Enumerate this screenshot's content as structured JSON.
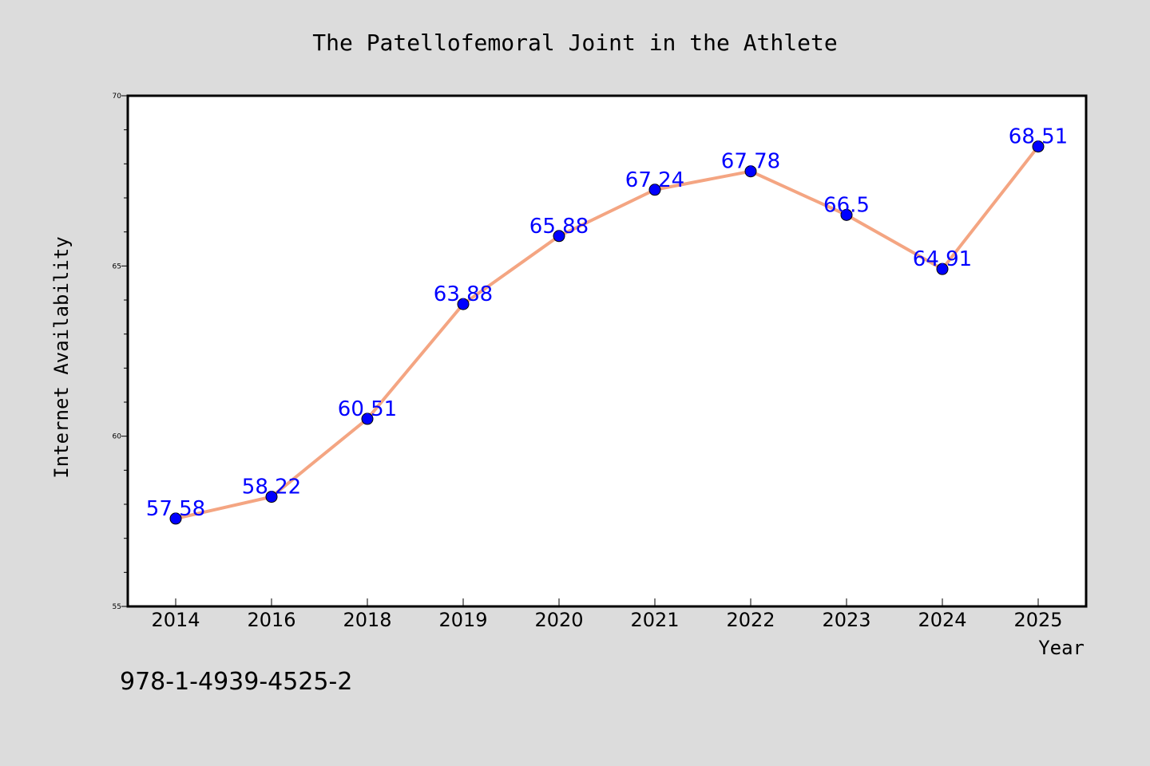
{
  "footer_text": "978-1-4939-4525-2",
  "chart_data": {
    "type": "line",
    "title": "The Patellofemoral Joint in the Athlete",
    "xlabel": "Year",
    "ylabel": "Internet Availability",
    "categories": [
      "2014",
      "2016",
      "2018",
      "2019",
      "2020",
      "2021",
      "2022",
      "2023",
      "2024",
      "2025"
    ],
    "values": [
      57.58,
      58.22,
      60.51,
      63.88,
      65.88,
      67.24,
      67.78,
      66.5,
      64.91,
      68.51
    ],
    "data_labels": [
      "57.58",
      "58.22",
      "60.51",
      "63.88",
      "65.88",
      "67.24",
      "67.78",
      "66.5",
      "64.91",
      "68.51"
    ],
    "ylim": [
      55,
      70
    ],
    "yticks": [
      "55",
      "60",
      "65",
      "70"
    ],
    "line_color": "#f4a582",
    "marker_color": "#0000ff",
    "label_color": "#0000ff",
    "grid": false,
    "legend": "none"
  }
}
